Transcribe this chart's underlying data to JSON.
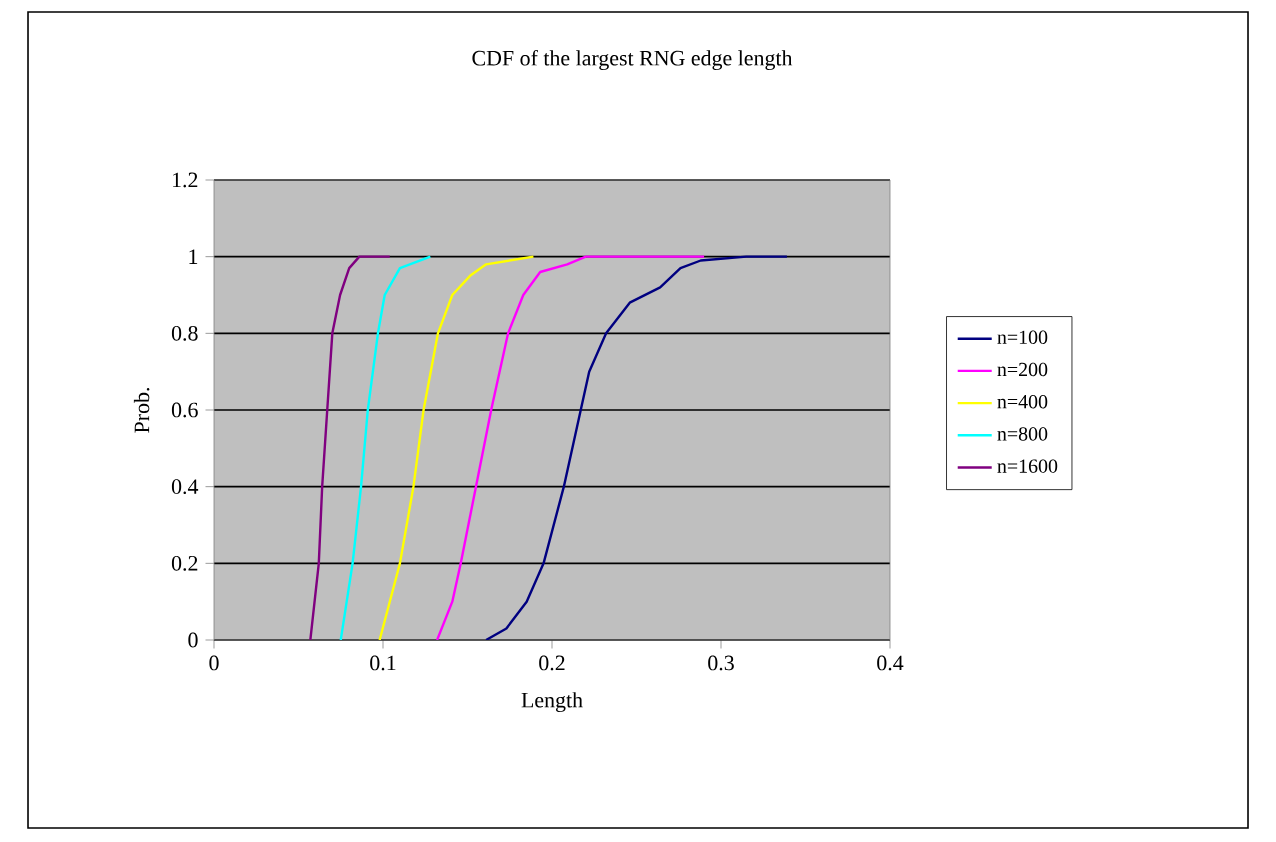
{
  "chart_data": {
    "type": "line",
    "title": "CDF of the largest RNG edge length",
    "xlabel": "Length",
    "ylabel": "Prob.",
    "xlim": [
      0,
      0.4
    ],
    "ylim": [
      0,
      1.2
    ],
    "xticks": [
      0,
      0.1,
      0.2,
      0.3,
      0.4
    ],
    "yticks": [
      0,
      0.2,
      0.4,
      0.6,
      0.8,
      1,
      1.2
    ],
    "grid": "y",
    "legend": "right",
    "marker": "none",
    "line_style": "solid",
    "series": [
      {
        "name": "n=100",
        "color": "#000080",
        "x": [
          0.161,
          0.173,
          0.185,
          0.195,
          0.207,
          0.217,
          0.222,
          0.232,
          0.246,
          0.264,
          0.276,
          0.288,
          0.315,
          0.339
        ],
        "values": [
          0,
          0.03,
          0.1,
          0.2,
          0.4,
          0.6,
          0.7,
          0.8,
          0.88,
          0.92,
          0.97,
          0.99,
          1,
          1
        ]
      },
      {
        "name": "n=200",
        "color": "#ff00ff",
        "x": [
          0.132,
          0.141,
          0.146,
          0.155,
          0.164,
          0.174,
          0.183,
          0.193,
          0.209,
          0.22,
          0.29
        ],
        "values": [
          0,
          0.1,
          0.2,
          0.4,
          0.6,
          0.8,
          0.9,
          0.96,
          0.98,
          1,
          1
        ]
      },
      {
        "name": "n=400",
        "color": "#ffff00",
        "x": [
          0.098,
          0.11,
          0.118,
          0.124,
          0.1325,
          0.141,
          0.1515,
          0.161,
          0.189
        ],
        "values": [
          0,
          0.2,
          0.4,
          0.6,
          0.8,
          0.9,
          0.95,
          0.98,
          1
        ]
      },
      {
        "name": "n=800",
        "color": "#00ffff",
        "x": [
          0.075,
          0.082,
          0.087,
          0.091,
          0.097,
          0.101,
          0.11,
          0.128
        ],
        "values": [
          0,
          0.2,
          0.4,
          0.6,
          0.8,
          0.9,
          0.97,
          1
        ]
      },
      {
        "name": "n=1600",
        "color": "#800080",
        "x": [
          0.057,
          0.062,
          0.064,
          0.067,
          0.07,
          0.0746,
          0.08,
          0.086,
          0.104
        ],
        "values": [
          0,
          0.2,
          0.4,
          0.6,
          0.8,
          0.9,
          0.97,
          1,
          1
        ]
      }
    ]
  }
}
